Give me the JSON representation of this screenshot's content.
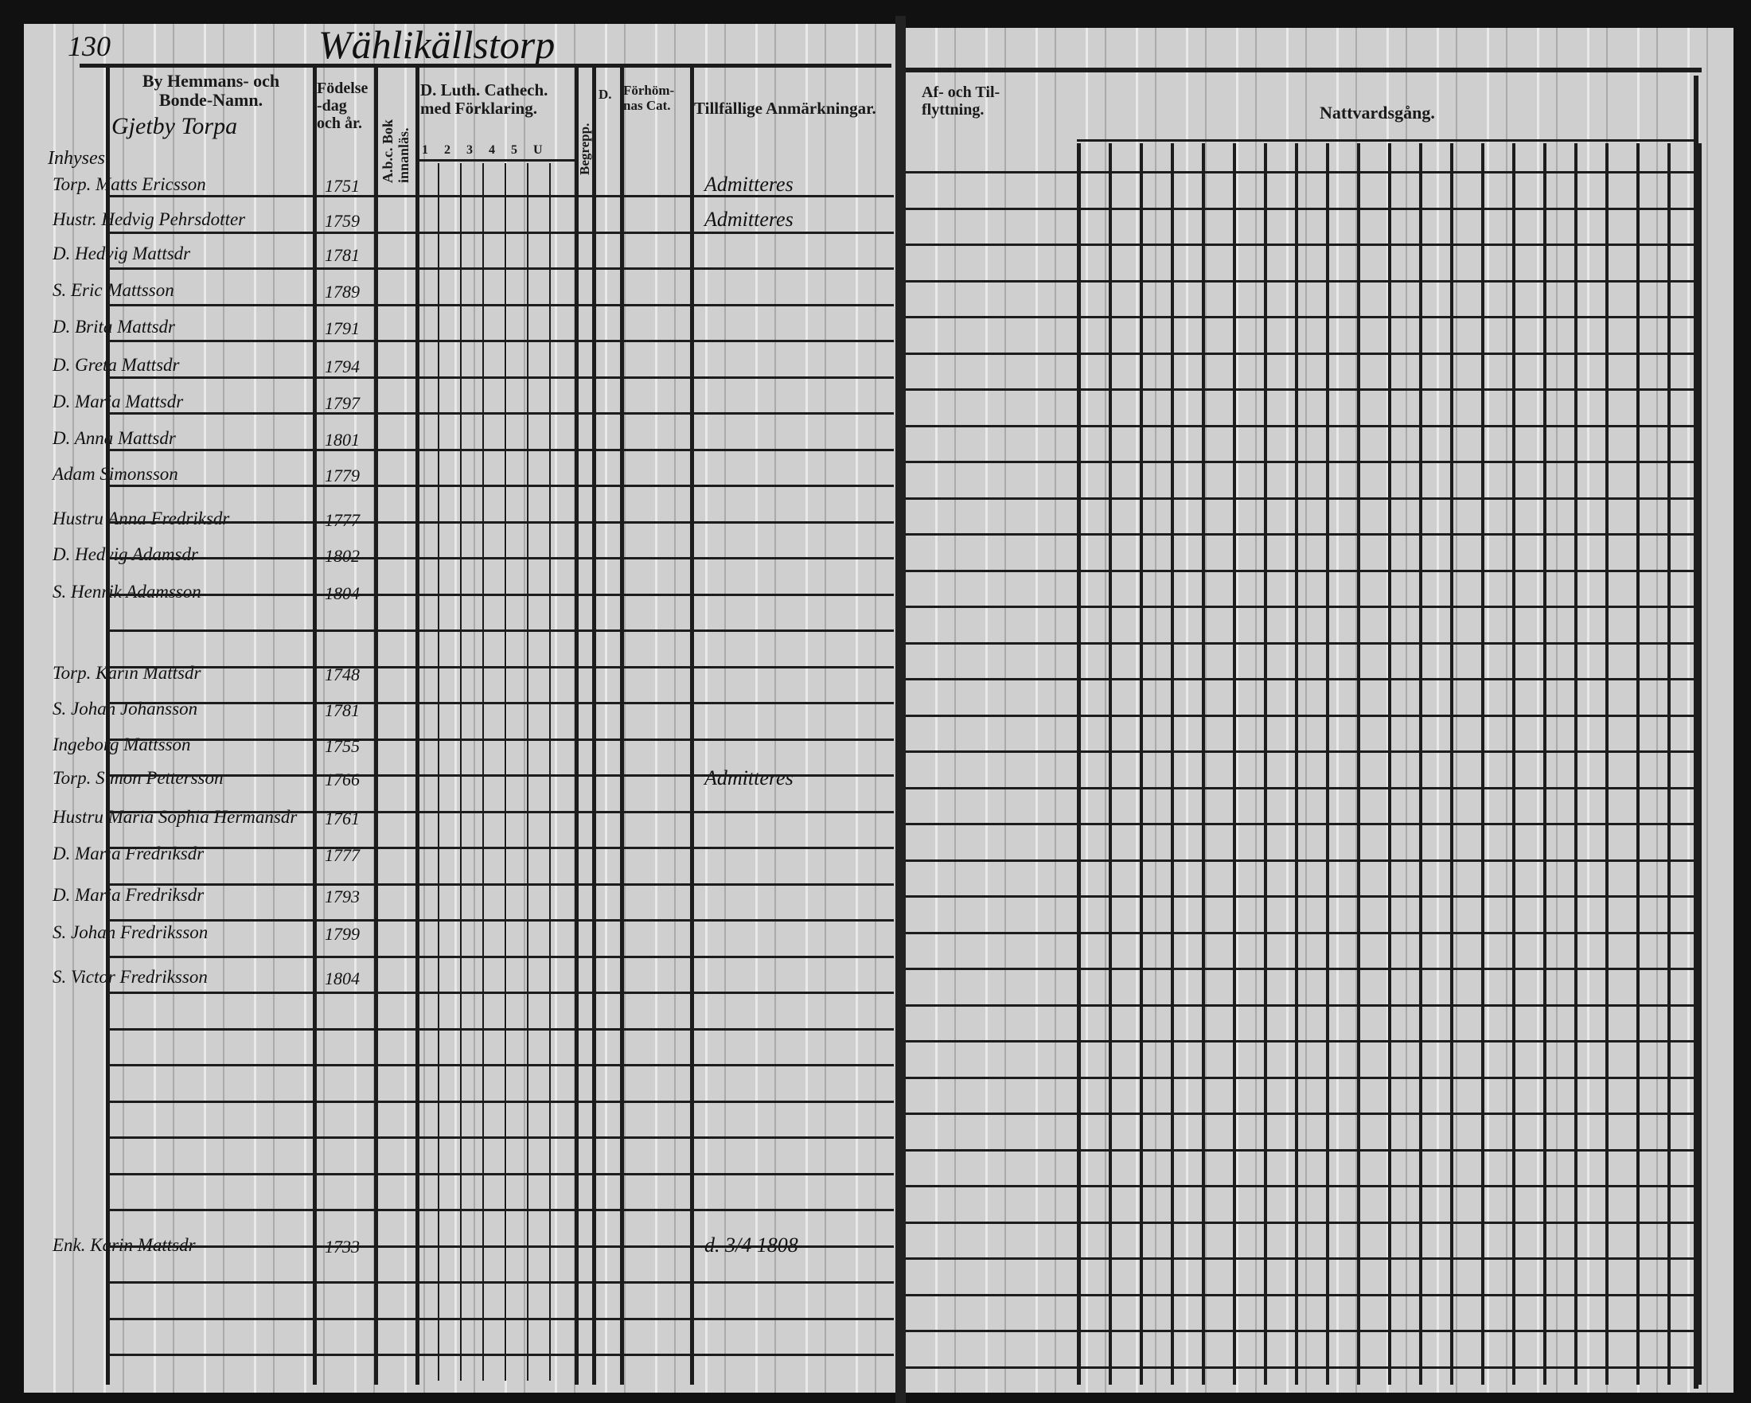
{
  "left_page": {
    "page_number": "130",
    "place_title": "Wählikällstorp",
    "household_label": "Gjetby Torpa",
    "section_label": "Inhyses",
    "headers": {
      "name": "By Hemmans- och Bonde-Namn.",
      "birth": "Födelse-dag och år.",
      "abc": "A.b.c. Bok innanläs.",
      "catechism": "D. Luth. Cathech. med Förklaring.",
      "catechism_subcols": [
        "1",
        "2",
        "3",
        "4",
        "5",
        "U"
      ],
      "begrepp": "Begrepp.",
      "d": "D.",
      "forhor": "Förhöm- nas Cat.",
      "remarks": "Tillfällige Anmärkningar."
    },
    "rows": [
      {
        "name": "Torp. Matts Ericsson",
        "birth": "1751",
        "remark": "Admitteres"
      },
      {
        "name": "Hustr. Hedvig Pehrsdotter",
        "birth": "1759",
        "remark": "Admitteres"
      },
      {
        "name": "D. Hedvig Mattsdr",
        "birth": "1781",
        "remark": ""
      },
      {
        "name": "S. Eric Mattsson",
        "birth": "1789",
        "remark": ""
      },
      {
        "name": "D. Brita Mattsdr",
        "birth": "1791",
        "remark": ""
      },
      {
        "name": "D. Greta Mattsdr",
        "birth": "1794",
        "remark": ""
      },
      {
        "name": "D. Maria Mattsdr",
        "birth": "1797",
        "remark": ""
      },
      {
        "name": "D. Anna Mattsdr",
        "birth": "1801",
        "remark": ""
      },
      {
        "name": "Adam Simonsson",
        "birth": "1779",
        "remark": ""
      },
      {
        "name": "Hustru Anna Fredriksdr",
        "birth": "1777",
        "remark": ""
      },
      {
        "name": "D. Hedvig Adamsdr",
        "birth": "1802",
        "remark": ""
      },
      {
        "name": "S. Henrik Adamsson",
        "birth": "1804",
        "remark": ""
      },
      {
        "name": "Torp. Karin Mattsdr",
        "birth": "1748",
        "remark": ""
      },
      {
        "name": "S. Johan Johansson",
        "birth": "1781",
        "remark": ""
      },
      {
        "name": "Ingeborg Mattsson",
        "birth": "1755",
        "remark": ""
      },
      {
        "name": "Torp. Simon Pettersson",
        "birth": "1766",
        "remark": "Admitteres"
      },
      {
        "name": "Hustru Maria Sophia Hermansdr",
        "birth": "1761",
        "remark": ""
      },
      {
        "name": "D. Maria Fredriksdr",
        "birth": "1777",
        "remark": ""
      },
      {
        "name": "D. Maria Fredriksdr",
        "birth": "1793",
        "remark": ""
      },
      {
        "name": "S. Johan Fredriksson",
        "birth": "1799",
        "remark": ""
      },
      {
        "name": "S. Victor Fredriksson",
        "birth": "1804",
        "remark": ""
      },
      {
        "name": "Enk. Karin Mattsdr",
        "birth": "1733",
        "remark": "d. 3/4 1808"
      }
    ]
  },
  "right_page": {
    "headers": {
      "moves": "Af- och Til- flyttning.",
      "communion": "Nattvardsgång."
    }
  }
}
